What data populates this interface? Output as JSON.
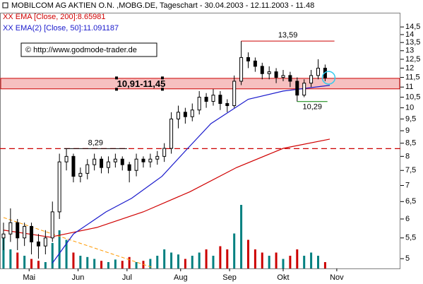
{
  "chart_data": {
    "type": "candlestick",
    "title": "MOBILCOM AG AKTIEN O.N. ,MOBG.DE, Tageschart - 30.04.2003 - 12.11.2003 - 11.48",
    "copyright": "© http://www.godmode-trader.de",
    "log_scale": true,
    "ylim": [
      4.78,
      15.48
    ],
    "yticks": [
      5,
      {
        "value": 5.5,
        "label": "5,5"
      },
      6,
      {
        "value": 6.5,
        "label": "6,5"
      },
      7,
      {
        "value": 7.5,
        "label": "7,5"
      },
      8,
      {
        "value": 8.5,
        "label": "8,5"
      },
      9,
      {
        "value": 9.5,
        "label": "9,5"
      },
      10,
      {
        "value": 10.5,
        "label": "10,5"
      },
      11,
      {
        "value": 11.5,
        "label": "11,5"
      },
      12,
      {
        "value": 12.5,
        "label": "12,5"
      },
      13,
      {
        "value": 13.5,
        "label": "13,5"
      },
      14,
      {
        "value": 14.5,
        "label": "14,5"
      }
    ],
    "xlim": [
      -1.5,
      170.3
    ],
    "xticks": [
      {
        "value": 11,
        "label": "Mai"
      },
      {
        "value": 32,
        "label": "Jun"
      },
      {
        "value": 53,
        "label": "Jul"
      },
      {
        "value": 76,
        "label": "Aug"
      },
      {
        "value": 97,
        "label": "Sep"
      },
      {
        "value": 120,
        "label": "Okt"
      },
      {
        "value": 143,
        "label": "Nov"
      }
    ],
    "x": [
      0,
      3,
      6,
      9,
      12,
      15,
      18,
      21,
      24,
      27,
      30,
      33,
      36,
      39,
      42,
      45,
      48,
      51,
      54,
      57,
      60,
      63,
      66,
      69,
      72,
      75,
      78,
      81,
      84,
      87,
      90,
      93,
      96,
      99,
      102,
      105,
      108,
      111,
      114,
      117,
      120,
      123,
      126,
      129,
      132,
      135,
      138
    ],
    "open": [
      5.5,
      5.6,
      5.9,
      5.5,
      5.8,
      5.4,
      5.3,
      5.5,
      6.2,
      7.8,
      8.0,
      7.3,
      7.4,
      7.7,
      7.9,
      7.6,
      7.8,
      7.9,
      7.7,
      7.5,
      7.9,
      7.8,
      7.9,
      8.0,
      8.3,
      9.5,
      9.8,
      9.6,
      9.9,
      10.5,
      10.3,
      10.6,
      10.2,
      10.1,
      11.3,
      12.6,
      12.4,
      12.1,
      11.7,
      11.8,
      11.5,
      11.6,
      11.3,
      10.6,
      11.2,
      11.6,
      12.0
    ],
    "high": [
      5.9,
      6.3,
      6.0,
      5.9,
      5.9,
      5.6,
      5.7,
      6.5,
      8.1,
      8.29,
      8.1,
      7.6,
      7.9,
      8.1,
      8.0,
      8.0,
      8.1,
      8.0,
      7.8,
      8.1,
      8.0,
      8.1,
      8.2,
      8.5,
      9.8,
      10.1,
      10.0,
      10.2,
      10.8,
      10.7,
      10.9,
      10.8,
      10.4,
      11.6,
      13.59,
      12.9,
      12.6,
      12.3,
      12.1,
      12.0,
      11.9,
      11.8,
      11.5,
      11.4,
      11.9,
      12.5,
      12.2
    ],
    "low": [
      5.2,
      5.4,
      5.2,
      5.3,
      5.1,
      5.0,
      5.1,
      5.4,
      6.0,
      7.5,
      7.1,
      7.1,
      7.2,
      7.5,
      7.4,
      7.4,
      7.6,
      7.5,
      7.1,
      7.3,
      7.6,
      7.6,
      7.7,
      7.8,
      8.1,
      9.1,
      9.3,
      9.4,
      9.7,
      10.0,
      10.1,
      9.9,
      9.8,
      10.0,
      11.1,
      12.0,
      11.8,
      11.4,
      11.4,
      11.2,
      11.3,
      11.0,
      10.29,
      10.5,
      11.0,
      11.4,
      11.3
    ],
    "close": [
      5.6,
      5.9,
      5.5,
      5.8,
      5.4,
      5.3,
      5.5,
      6.2,
      7.8,
      8.0,
      7.3,
      7.4,
      7.7,
      7.9,
      7.6,
      7.8,
      7.9,
      7.7,
      7.5,
      7.9,
      7.8,
      7.9,
      8.0,
      8.3,
      9.5,
      9.8,
      9.6,
      9.9,
      10.5,
      10.3,
      10.6,
      10.2,
      10.1,
      11.3,
      12.6,
      12.4,
      12.1,
      11.7,
      11.8,
      11.5,
      11.6,
      11.3,
      10.6,
      11.2,
      11.6,
      12.0,
      11.48
    ],
    "candle_color": "#000000",
    "volume": [
      50,
      30,
      25,
      20,
      15,
      12,
      10,
      40,
      60,
      45,
      25,
      20,
      18,
      15,
      12,
      10,
      14,
      12,
      18,
      10,
      12,
      15,
      20,
      30,
      25,
      22,
      15,
      20,
      25,
      30,
      20,
      35,
      30,
      55,
      100,
      45,
      30,
      25,
      20,
      25,
      15,
      20,
      30,
      20,
      25,
      20,
      10
    ],
    "volume_lim": [
      0,
      100
    ],
    "volume_up_color": "#008080",
    "volume_down_color": "#cc0000",
    "series": [
      {
        "name": "XX EMA [Close, 200]:8.65981",
        "color": "#d00000",
        "x": [
          0,
          20,
          40,
          60,
          80,
          100,
          120,
          140
        ],
        "values": [
          5.7,
          5.52,
          5.77,
          6.2,
          6.8,
          7.6,
          8.3,
          8.66
        ]
      },
      {
        "name": "XX EMA(2) [Close, 50]:11.091187",
        "color": "#1a1acc",
        "x": [
          21,
          30,
          44,
          55,
          68,
          78,
          89,
          105,
          120,
          140
        ],
        "values": [
          4.9,
          5.6,
          6.2,
          6.6,
          7.3,
          8.2,
          9.3,
          10.4,
          10.8,
          11.09
        ]
      }
    ],
    "band": {
      "label": "10,91-11,45",
      "from": 10.91,
      "to": 11.45,
      "color": "#f6c0c0",
      "edge_color": "#cc0000"
    },
    "dashed_level": {
      "value": 8.29,
      "color": "#cc0000"
    },
    "levels": [
      {
        "label": "13,59",
        "value": 13.59,
        "x": [
          102,
          142
        ],
        "color": "#cc0000"
      },
      {
        "label": "8,29",
        "value": 8.29,
        "x": [
          26,
          53
        ],
        "color": "#000000"
      },
      {
        "label": "10,29",
        "value": 10.29,
        "x": [
          126,
          139
        ],
        "color": "#008000"
      }
    ],
    "trendline": {
      "x": [
        0,
        64
      ],
      "values": [
        6.04,
        4.8
      ],
      "color": "#ff9900"
    }
  }
}
